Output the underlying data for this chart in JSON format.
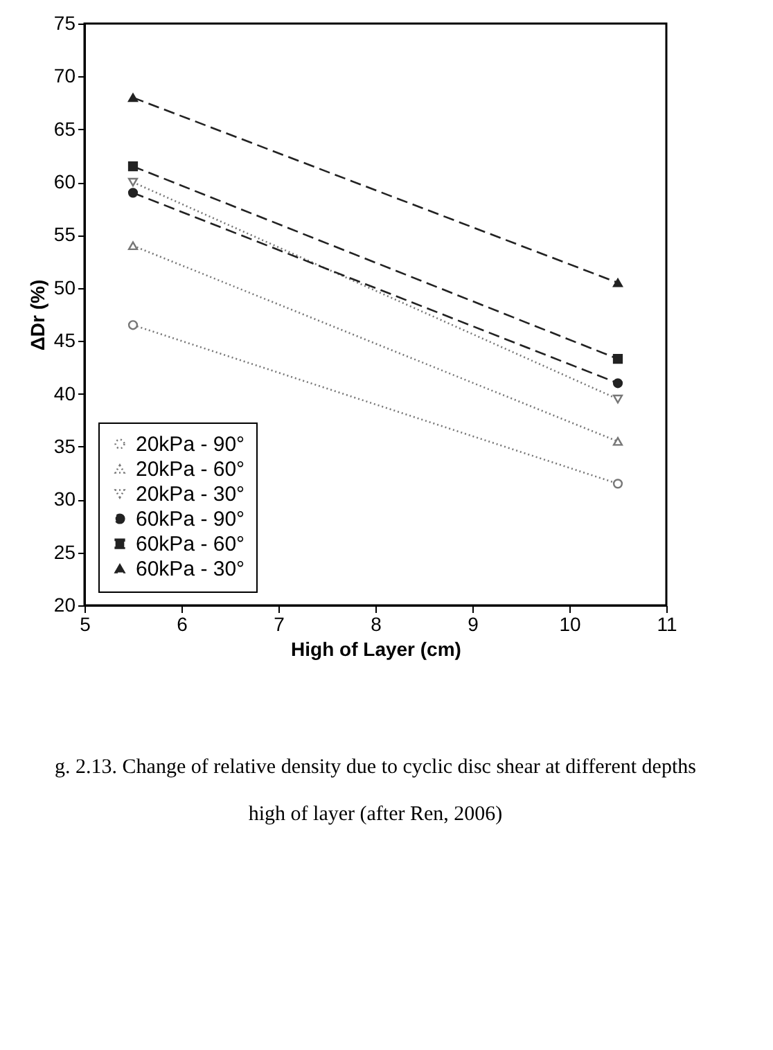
{
  "chart_data": {
    "type": "line",
    "xlabel": "High of Layer (cm)",
    "ylabel": "ΔDr (%)",
    "x": [
      5.5,
      10.5
    ],
    "series": [
      {
        "name": "20kPa - 90°",
        "color": "#777777",
        "values": [
          46.5,
          31.5
        ],
        "marker": "circle",
        "line_style": "dotted"
      },
      {
        "name": "20kPa - 60°",
        "color": "#777777",
        "values": [
          54,
          35.5
        ],
        "marker": "triangle",
        "line_style": "dotted"
      },
      {
        "name": "20kPa - 30°",
        "color": "#777777",
        "values": [
          60,
          39.5
        ],
        "marker": "triangle-down",
        "line_style": "dotted"
      },
      {
        "name": "60kPa - 90°",
        "color": "#222222",
        "values": [
          59,
          41
        ],
        "marker": "circle",
        "line_style": "dashed"
      },
      {
        "name": "60kPa - 60°",
        "color": "#222222",
        "values": [
          61.5,
          43.3
        ],
        "marker": "square",
        "line_style": "dashed"
      },
      {
        "name": "60kPa - 30°",
        "color": "#222222",
        "values": [
          68,
          50.5
        ],
        "marker": "triangle",
        "line_style": "dashed"
      }
    ],
    "xlim": [
      5,
      11
    ],
    "xticks": [
      5,
      6,
      7,
      8,
      9,
      10,
      11
    ],
    "ylim": [
      20,
      75
    ],
    "yticks": [
      20,
      25,
      30,
      35,
      40,
      45,
      50,
      55,
      60,
      65,
      70,
      75
    ],
    "grid": false,
    "legend": "bottom left",
    "annotations": [
      "g. 2.13. Change of relative density due to cyclic disc shear at different depths",
      "high of layer (after  Ren, 2006)"
    ]
  }
}
